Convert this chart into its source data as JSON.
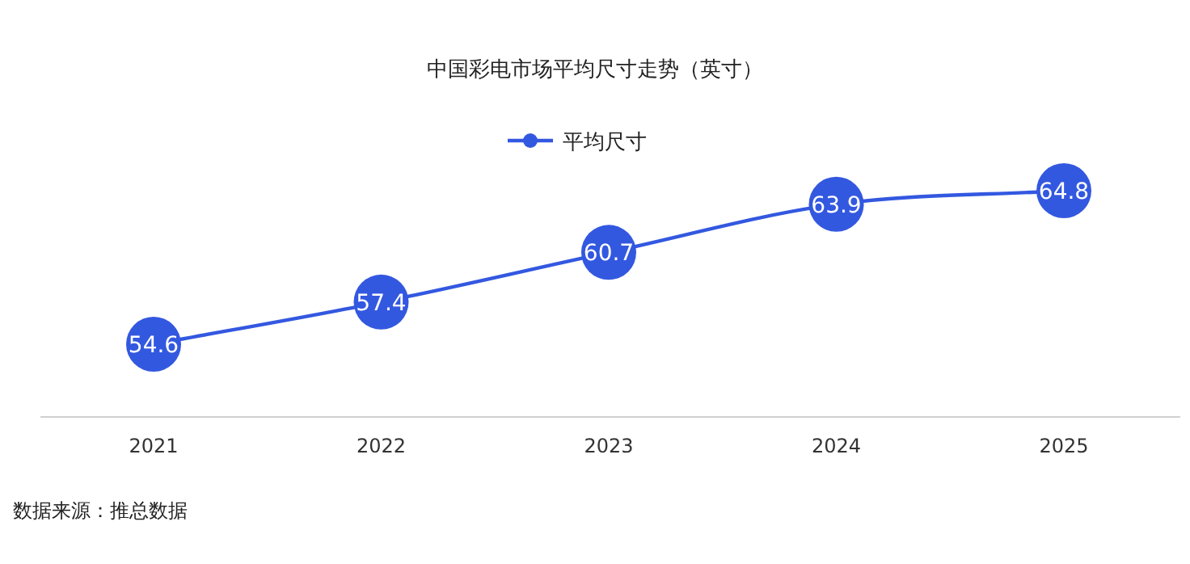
{
  "chart_data": {
    "type": "line",
    "title": "中国彩电市场平均尺寸走势（英寸）",
    "categories": [
      "2021",
      "2022",
      "2023",
      "2024",
      "2025"
    ],
    "series": [
      {
        "name": "平均尺寸",
        "color": "#3358e0",
        "values": [
          54.6,
          57.4,
          60.7,
          63.9,
          64.8
        ]
      }
    ],
    "data_labels": true,
    "legend": "top",
    "marker": "circle",
    "line_style": "solid",
    "annotations": [
      "数据来源：推总数据"
    ]
  }
}
